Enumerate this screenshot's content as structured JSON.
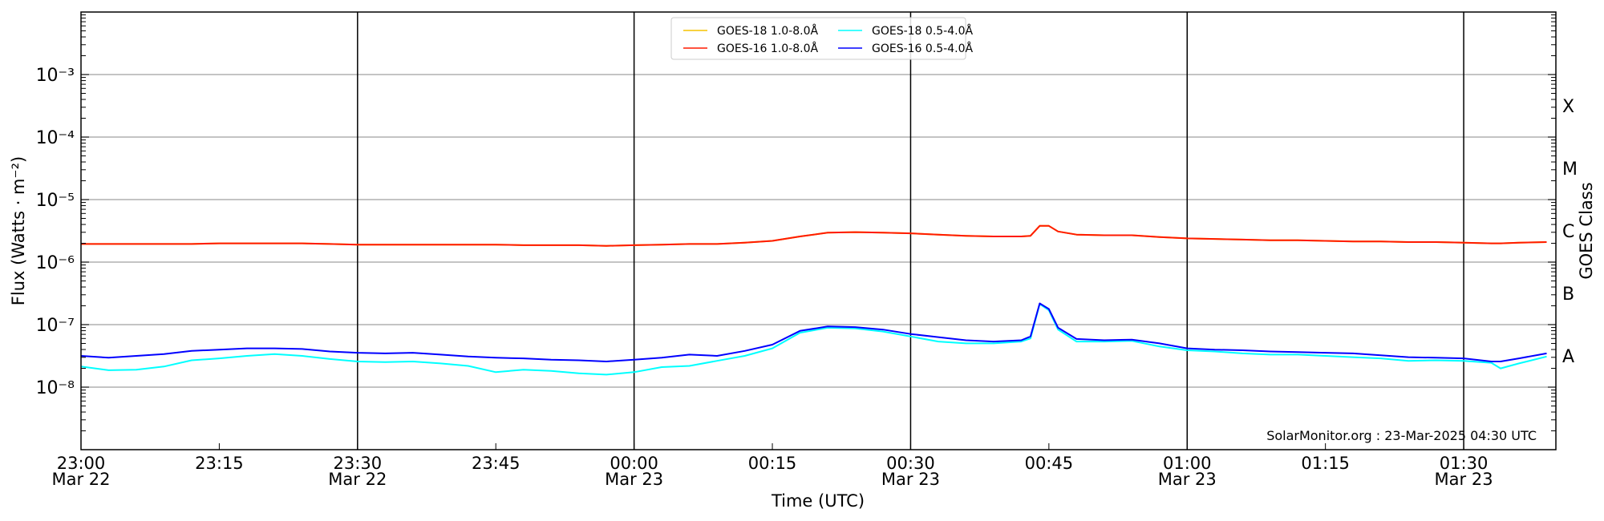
{
  "chart_data": {
    "type": "line",
    "xlabel": "Time (UTC)",
    "ylabel": "Flux (Watts · m⁻²)",
    "ylabel_right": "GOES Class",
    "yscale": "log",
    "ylim": [
      1e-09,
      0.01
    ],
    "xlim_minutes_after_2300_mar22": [
      0,
      160
    ],
    "grid": "horizontal at decades; vertical black lines every 30 min",
    "legend_placement": "top-center",
    "watermark": "SolarMonitor.org : 23-Mar-2025 04:30 UTC",
    "y_ticks": [
      {
        "value": 0.001,
        "label": "10⁻³"
      },
      {
        "value": 0.0001,
        "label": "10⁻⁴"
      },
      {
        "value": 1e-05,
        "label": "10⁻⁵"
      },
      {
        "value": 1e-06,
        "label": "10⁻⁶"
      },
      {
        "value": 1e-07,
        "label": "10⁻⁷"
      },
      {
        "value": 1e-08,
        "label": "10⁻⁸"
      }
    ],
    "class_ticks": [
      {
        "log10": -3.5,
        "label": "X"
      },
      {
        "log10": -4.5,
        "label": "M"
      },
      {
        "log10": -5.5,
        "label": "C"
      },
      {
        "log10": -6.5,
        "label": "B"
      },
      {
        "log10": -7.5,
        "label": "A"
      }
    ],
    "x_ticks": [
      {
        "minute": 0,
        "time": "23:00",
        "date": "Mar 22"
      },
      {
        "minute": 15,
        "time": "23:15",
        "date": ""
      },
      {
        "minute": 30,
        "time": "23:30",
        "date": "Mar 22"
      },
      {
        "minute": 45,
        "time": "23:45",
        "date": ""
      },
      {
        "minute": 60,
        "time": "00:00",
        "date": "Mar 23"
      },
      {
        "minute": 75,
        "time": "00:15",
        "date": ""
      },
      {
        "minute": 90,
        "time": "00:30",
        "date": "Mar 23"
      },
      {
        "minute": 105,
        "time": "00:45",
        "date": ""
      },
      {
        "minute": 120,
        "time": "01:00",
        "date": "Mar 23"
      },
      {
        "minute": 135,
        "time": "01:15",
        "date": ""
      },
      {
        "minute": 150,
        "time": "01:30",
        "date": "Mar 23"
      }
    ],
    "vertical_lines_minutes": [
      30,
      60,
      90,
      120,
      150
    ],
    "x_minutes": [
      0,
      3,
      6,
      9,
      12,
      15,
      18,
      21,
      24,
      27,
      30,
      33,
      36,
      39,
      42,
      45,
      48,
      51,
      54,
      57,
      60,
      63,
      66,
      69,
      72,
      75,
      78,
      81,
      84,
      87,
      90,
      93,
      96,
      99,
      102,
      103,
      104,
      105,
      106,
      108,
      111,
      114,
      117,
      120,
      123,
      126,
      129,
      132,
      135,
      138,
      141,
      144,
      147,
      150,
      153,
      154,
      156,
      159
    ],
    "series": [
      {
        "name": "GOES-18 1.0-8.0Å",
        "color": "#f5c400",
        "values_log10": [
          -5.71,
          -5.71,
          -5.71,
          -5.71,
          -5.71,
          -5.7,
          -5.7,
          -5.7,
          -5.7,
          -5.71,
          -5.72,
          -5.72,
          -5.72,
          -5.72,
          -5.72,
          -5.72,
          -5.73,
          -5.73,
          -5.73,
          -5.74,
          -5.73,
          -5.72,
          -5.71,
          -5.71,
          -5.69,
          -5.66,
          -5.59,
          -5.53,
          -5.52,
          -5.53,
          -5.54,
          -5.56,
          -5.58,
          -5.59,
          -5.59,
          -5.58,
          -5.42,
          -5.42,
          -5.51,
          -5.56,
          -5.57,
          -5.57,
          -5.6,
          -5.62,
          -5.63,
          -5.64,
          -5.65,
          -5.65,
          -5.66,
          -5.67,
          -5.67,
          -5.68,
          -5.68,
          -5.69,
          -5.7,
          -5.7,
          -5.69,
          -5.68
        ]
      },
      {
        "name": "GOES-16 1.0-8.0Å",
        "color": "#ff1a00",
        "values_log10": [
          -5.71,
          -5.71,
          -5.71,
          -5.71,
          -5.71,
          -5.7,
          -5.7,
          -5.7,
          -5.7,
          -5.71,
          -5.72,
          -5.72,
          -5.72,
          -5.72,
          -5.72,
          -5.72,
          -5.73,
          -5.73,
          -5.73,
          -5.74,
          -5.73,
          -5.72,
          -5.71,
          -5.71,
          -5.69,
          -5.66,
          -5.59,
          -5.53,
          -5.52,
          -5.53,
          -5.54,
          -5.56,
          -5.58,
          -5.59,
          -5.59,
          -5.58,
          -5.42,
          -5.42,
          -5.51,
          -5.56,
          -5.57,
          -5.57,
          -5.6,
          -5.62,
          -5.63,
          -5.64,
          -5.65,
          -5.65,
          -5.66,
          -5.67,
          -5.67,
          -5.68,
          -5.68,
          -5.69,
          -5.7,
          -5.7,
          -5.69,
          -5.68
        ]
      },
      {
        "name": "GOES-18 0.5-4.0Å",
        "color": "#00ffff",
        "values_log10": [
          -7.67,
          -7.73,
          -7.72,
          -7.67,
          -7.57,
          -7.54,
          -7.5,
          -7.47,
          -7.5,
          -7.55,
          -7.59,
          -7.6,
          -7.59,
          -7.62,
          -7.66,
          -7.76,
          -7.72,
          -7.74,
          -7.78,
          -7.8,
          -7.76,
          -7.68,
          -7.66,
          -7.58,
          -7.5,
          -7.38,
          -7.13,
          -7.05,
          -7.06,
          -7.11,
          -7.19,
          -7.27,
          -7.3,
          -7.3,
          -7.27,
          -7.22,
          -6.67,
          -6.77,
          -7.08,
          -7.27,
          -7.27,
          -7.26,
          -7.35,
          -7.41,
          -7.43,
          -7.46,
          -7.48,
          -7.48,
          -7.5,
          -7.52,
          -7.54,
          -7.58,
          -7.57,
          -7.58,
          -7.61,
          -7.7,
          -7.62,
          -7.51
        ]
      },
      {
        "name": "GOES-16 0.5-4.0Å",
        "color": "#0000ff",
        "values_log10": [
          -7.5,
          -7.53,
          -7.5,
          -7.47,
          -7.42,
          -7.4,
          -7.38,
          -7.38,
          -7.39,
          -7.43,
          -7.45,
          -7.46,
          -7.45,
          -7.48,
          -7.51,
          -7.53,
          -7.54,
          -7.56,
          -7.57,
          -7.59,
          -7.56,
          -7.53,
          -7.48,
          -7.5,
          -7.42,
          -7.32,
          -7.1,
          -7.03,
          -7.04,
          -7.08,
          -7.15,
          -7.2,
          -7.25,
          -7.27,
          -7.25,
          -7.19,
          -6.66,
          -6.75,
          -7.05,
          -7.23,
          -7.25,
          -7.24,
          -7.3,
          -7.38,
          -7.4,
          -7.41,
          -7.43,
          -7.44,
          -7.45,
          -7.46,
          -7.49,
          -7.52,
          -7.53,
          -7.54,
          -7.59,
          -7.59,
          -7.54,
          -7.46
        ]
      }
    ]
  }
}
